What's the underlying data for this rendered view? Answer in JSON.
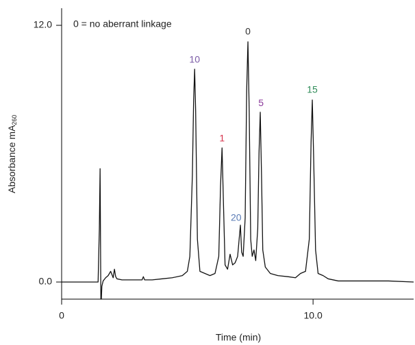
{
  "chart_data": {
    "type": "line",
    "note": "0 = no aberrant linkage",
    "x_label": "Time (min)",
    "y_label": "Absorbance mA",
    "y_label_sub": "260",
    "xlim": [
      0,
      14
    ],
    "ylim": [
      -0.8,
      12.8
    ],
    "xticks": [
      0,
      {
        "value": 10,
        "label": "10.0"
      }
    ],
    "yticks": [
      {
        "value": 0,
        "label": "0.0"
      },
      {
        "value": 12,
        "label": "12.0"
      }
    ],
    "color": "#111111",
    "x": [
      0,
      0.5,
      1.0,
      1.45,
      1.5,
      1.53,
      1.56,
      1.58,
      1.6,
      1.65,
      1.75,
      1.85,
      1.95,
      2.05,
      2.1,
      2.15,
      2.2,
      2.4,
      2.8,
      3.2,
      3.25,
      3.3,
      3.6,
      4.0,
      4.4,
      4.8,
      5.0,
      5.1,
      5.2,
      5.25,
      5.29,
      5.33,
      5.4,
      5.5,
      5.7,
      5.9,
      6.1,
      6.25,
      6.32,
      6.38,
      6.44,
      6.5,
      6.6,
      6.7,
      6.8,
      6.9,
      7.0,
      7.06,
      7.11,
      7.16,
      7.22,
      7.3,
      7.36,
      7.41,
      7.46,
      7.52,
      7.58,
      7.65,
      7.72,
      7.8,
      7.85,
      7.9,
      7.95,
      8.0,
      8.1,
      8.3,
      8.6,
      9.0,
      9.3,
      9.5,
      9.7,
      9.85,
      9.92,
      9.97,
      10.02,
      10.1,
      10.2,
      10.4,
      10.6,
      11,
      12,
      13,
      14
    ],
    "values": [
      0,
      0,
      0,
      0,
      2.5,
      5.3,
      -0.8,
      -0.8,
      -0.2,
      0.05,
      0.2,
      0.3,
      0.5,
      0.2,
      0.6,
      0.25,
      0.15,
      0.1,
      0.1,
      0.1,
      0.25,
      0.1,
      0.1,
      0.15,
      0.2,
      0.3,
      0.5,
      1.2,
      5.0,
      8.5,
      9.95,
      8.0,
      2.0,
      0.5,
      0.4,
      0.3,
      0.4,
      1.2,
      4.5,
      6.27,
      3.5,
      0.8,
      0.6,
      1.3,
      0.8,
      0.9,
      1.2,
      2.0,
      2.66,
      1.4,
      1.2,
      3.0,
      9.0,
      11.23,
      8.0,
      2.0,
      1.2,
      1.5,
      1.0,
      2.5,
      6.0,
      7.94,
      5.0,
      1.5,
      0.7,
      0.4,
      0.3,
      0.25,
      0.2,
      0.4,
      0.5,
      2.0,
      6.5,
      8.51,
      6.0,
      1.5,
      0.4,
      0.3,
      0.15,
      0.05,
      0.05,
      0.05,
      0
    ],
    "annotations": [
      {
        "text": "10",
        "x": 5.29,
        "y": 10.37,
        "color": "#7b5aa6"
      },
      {
        "text": "1",
        "x": 6.38,
        "y": 6.69,
        "color": "#d6304a"
      },
      {
        "text": "20",
        "x": 6.94,
        "y": 2.98,
        "color": "#5a7bb5"
      },
      {
        "text": "0",
        "x": 7.41,
        "y": 11.68,
        "color": "#333333"
      },
      {
        "text": "5",
        "x": 7.93,
        "y": 8.35,
        "color": "#8b3a9a"
      },
      {
        "text": "15",
        "x": 9.97,
        "y": 8.96,
        "color": "#2e8b57"
      }
    ]
  }
}
